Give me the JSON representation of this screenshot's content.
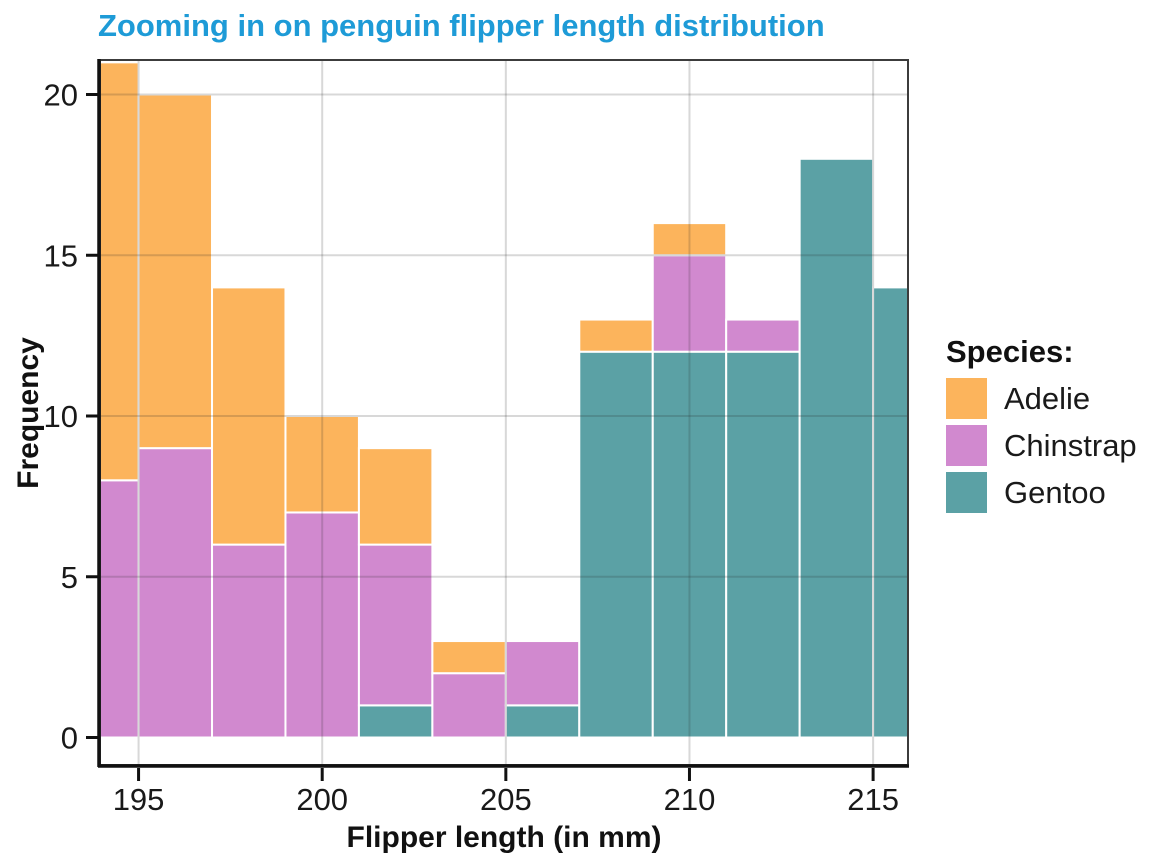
{
  "chart_data": {
    "type": "histogram",
    "stacked": true,
    "title": "Zooming in on penguin flipper length distribution",
    "title_color": "#1E9BD7",
    "xlabel": "Flipper length (in mm)",
    "ylabel": "Frequency",
    "legend_title": "Species:",
    "legend_position": "right",
    "x_ticks": [
      195,
      200,
      205,
      210,
      215
    ],
    "y_ticks": [
      0,
      5,
      10,
      15,
      20
    ],
    "x_range_shown": [
      194,
      216
    ],
    "y_range_shown": [
      0,
      21
    ],
    "bin_width": 2,
    "bin_edges": [
      193,
      195,
      197,
      199,
      201,
      203,
      205,
      207,
      209,
      211,
      213,
      215,
      217
    ],
    "series": [
      {
        "name": "Adelie",
        "color": "#FCB45C",
        "values": [
          13,
          11,
          8,
          3,
          3,
          1,
          0,
          1,
          1,
          0,
          0,
          0
        ]
      },
      {
        "name": "Chinstrap",
        "color": "#D189CF",
        "values": [
          8,
          9,
          6,
          7,
          5,
          2,
          2,
          0,
          3,
          1,
          0,
          0
        ]
      },
      {
        "name": "Gentoo",
        "color": "#5BA1A5",
        "values": [
          0,
          0,
          0,
          0,
          1,
          0,
          1,
          12,
          12,
          12,
          18,
          14
        ]
      }
    ],
    "stack_order_bottom_to_top": [
      "Gentoo",
      "Chinstrap",
      "Adelie"
    ],
    "bar_totals": [
      21,
      20,
      14,
      10,
      9,
      3,
      3,
      13,
      16,
      13,
      18,
      14
    ],
    "grid": true,
    "grid_color": "#D8D8D8",
    "bar_outline_color": "#FFFFFF",
    "axis_color": "#111111",
    "panel_border_color": "#3C3C3C"
  }
}
